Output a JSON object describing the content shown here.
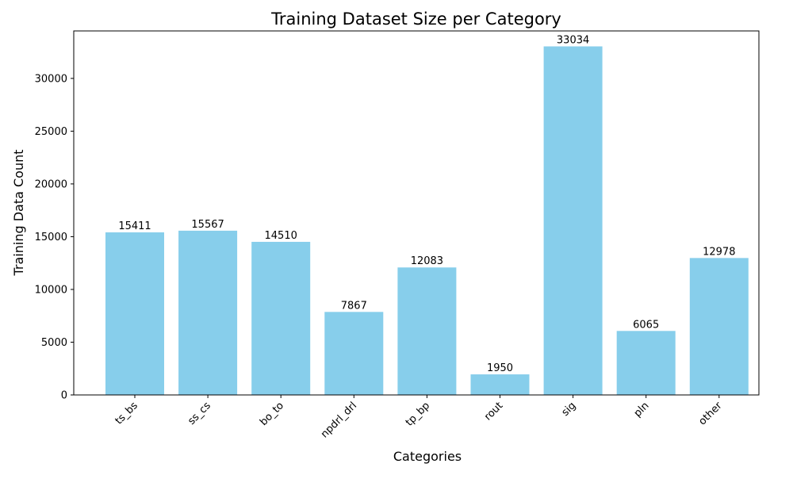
{
  "chart_data": {
    "type": "bar",
    "title": "Training Dataset Size per Category",
    "xlabel": "Categories",
    "ylabel": "Training Data Count",
    "categories": [
      "ts_bs",
      "ss_cs",
      "bo_to",
      "npdrl_drl",
      "tp_bp",
      "rout",
      "sig",
      "pln",
      "other"
    ],
    "values": [
      15411,
      15567,
      14510,
      7867,
      12083,
      1950,
      33034,
      6065,
      12978
    ],
    "data_labels": [
      "15411",
      "15567",
      "14510",
      "7867",
      "12083",
      "1950",
      "33034",
      "6065",
      "12978"
    ],
    "ylim": [
      0,
      34500
    ],
    "yticks": [
      0,
      5000,
      10000,
      15000,
      20000,
      25000,
      30000
    ],
    "ytick_labels": [
      "0",
      "5000",
      "10000",
      "15000",
      "20000",
      "25000",
      "30000"
    ],
    "grid": false,
    "legend": "none",
    "bar_color": "#87ceeb",
    "axis_color": "#000000"
  }
}
